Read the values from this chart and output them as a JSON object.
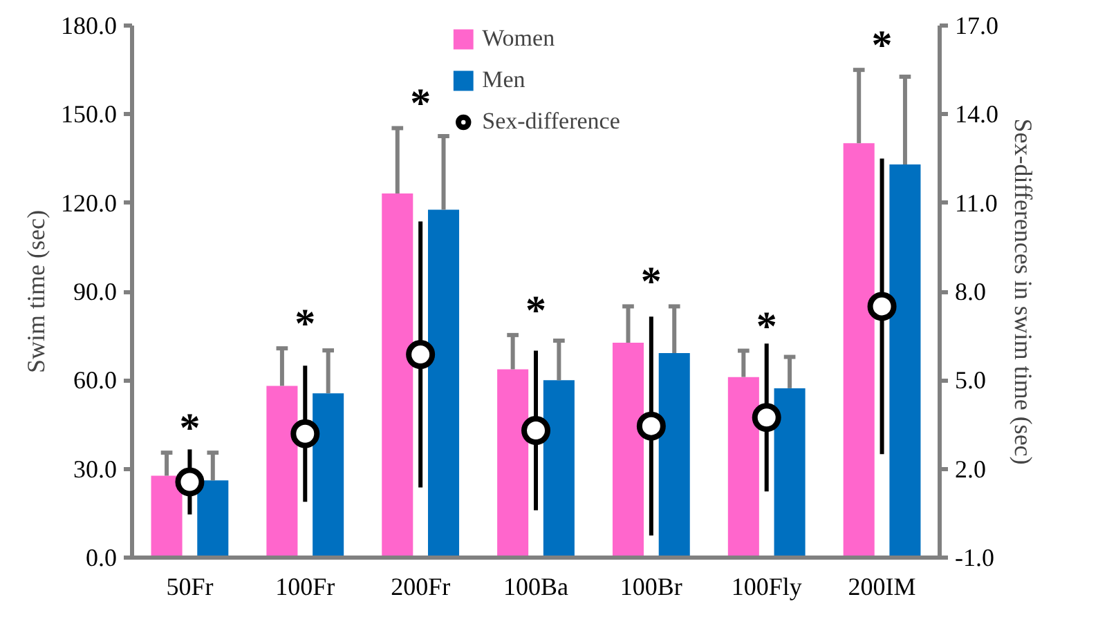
{
  "chart_data": {
    "type": "bar",
    "categories": [
      "50Fr",
      "100Fr",
      "200Fr",
      "100Ba",
      "100Br",
      "100Fly",
      "200IM"
    ],
    "ylabel": "Swim time (sec)",
    "y2label": "Sex-differences in swim time (sec)",
    "ylim": [
      0,
      180
    ],
    "yticks": [
      {
        "value": 0,
        "label": "0.0"
      },
      {
        "value": 30,
        "label": "30.0"
      },
      {
        "value": 60,
        "label": "60.0"
      },
      {
        "value": 90,
        "label": "90.0"
      },
      {
        "value": 120,
        "label": "120.0"
      },
      {
        "value": 150,
        "label": "150.0"
      },
      {
        "value": 180,
        "label": "180.0"
      }
    ],
    "y2lim": [
      -1,
      17
    ],
    "y2ticks": [
      {
        "value": -1,
        "label": "-1.0"
      },
      {
        "value": 2,
        "label": "2.0"
      },
      {
        "value": 5,
        "label": "5.0"
      },
      {
        "value": 8,
        "label": "8.0"
      },
      {
        "value": 11,
        "label": "11.0"
      },
      {
        "value": 14,
        "label": "14.0"
      },
      {
        "value": 17,
        "label": "17.0"
      }
    ],
    "grid": false,
    "legend": "top",
    "series": [
      {
        "name": "Women",
        "color": "#ff66cc",
        "values": [
          27.7,
          58.1,
          123.2,
          63.7,
          72.7,
          61.1,
          140.2
        ],
        "errors": [
          [
            27.7,
            35.5
          ],
          [
            58.1,
            70.8
          ],
          [
            123.2,
            145.3
          ],
          [
            63.7,
            75.3
          ],
          [
            72.7,
            85.0
          ],
          [
            61.1,
            70.0
          ],
          [
            140.2,
            165.0
          ]
        ]
      },
      {
        "name": "Men",
        "color": "#0070c0",
        "values": [
          26.1,
          55.6,
          117.7,
          60.0,
          69.2,
          57.3,
          133.0
        ],
        "errors": [
          [
            26.1,
            35.5
          ],
          [
            55.6,
            70.1
          ],
          [
            117.7,
            142.6
          ],
          [
            60.0,
            73.4
          ],
          [
            69.2,
            85.0
          ],
          [
            57.3,
            67.9
          ],
          [
            133.0,
            162.7
          ]
        ]
      },
      {
        "name": "Sex-difference",
        "type": "scatter",
        "axis": "y2",
        "marker": "circle",
        "color": "#000000",
        "values": [
          1.56,
          3.19,
          5.87,
          3.3,
          3.45,
          3.74,
          7.5
        ],
        "errors": [
          1.1,
          2.3,
          4.5,
          2.7,
          3.7,
          2.5,
          5.0
        ]
      }
    ],
    "annotations": [
      "*",
      "*",
      "*",
      "*",
      "*",
      "*",
      "*"
    ]
  }
}
